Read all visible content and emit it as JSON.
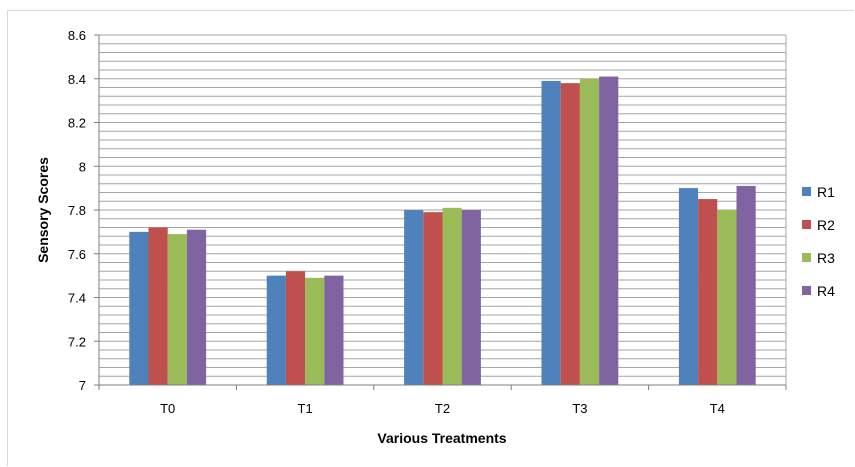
{
  "chart_data": {
    "type": "bar",
    "title": "",
    "xlabel": "Various Treatments",
    "ylabel": "Sensory Scores",
    "categories": [
      "T0",
      "T1",
      "T2",
      "T3",
      "T4"
    ],
    "series": [
      {
        "name": "R1",
        "color": "#4F81BD",
        "values": [
          7.7,
          7.5,
          7.8,
          8.39,
          7.9
        ]
      },
      {
        "name": "R2",
        "color": "#C0504D",
        "values": [
          7.72,
          7.52,
          7.79,
          8.38,
          7.85
        ]
      },
      {
        "name": "R3",
        "color": "#9BBB59",
        "values": [
          7.69,
          7.49,
          7.81,
          8.4,
          7.8
        ]
      },
      {
        "name": "R4",
        "color": "#8064A2",
        "values": [
          7.71,
          7.5,
          7.8,
          8.41,
          7.91
        ]
      }
    ],
    "ylim": [
      7,
      8.6
    ],
    "yticks": [
      "7",
      "7.2",
      "7.4",
      "7.6",
      "7.8",
      "8",
      "8.2",
      "8.4",
      "8.6"
    ],
    "minor_grid_step": 0.04,
    "grid": true,
    "legend_position": "right"
  }
}
